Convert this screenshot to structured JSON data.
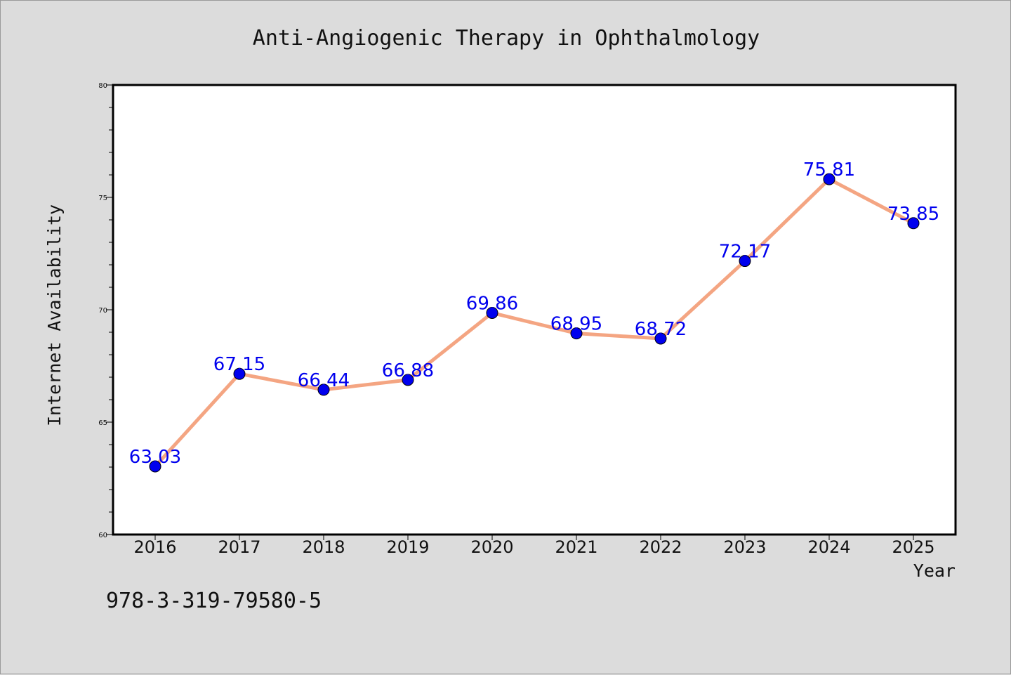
{
  "chart_data": {
    "type": "line",
    "title": "Anti-Angiogenic Therapy in Ophthalmology",
    "xlabel": "Year",
    "ylabel": "Internet Availability",
    "categories": [
      "2016",
      "2017",
      "2018",
      "2019",
      "2020",
      "2021",
      "2022",
      "2023",
      "2024",
      "2025"
    ],
    "series": [
      {
        "values": [
          63.03,
          67.15,
          66.44,
          66.88,
          69.86,
          68.95,
          68.72,
          72.17,
          75.81,
          73.85
        ],
        "labels": [
          "63.03",
          "67.15",
          "66.44",
          "66.88",
          "69.86",
          "68.95",
          "68.72",
          "72.17",
          "75.81",
          "73.85"
        ],
        "line_color": "#f4a582",
        "marker_color": "#0000ee"
      }
    ],
    "ylim": [
      60,
      80
    ],
    "yticks": [
      "60",
      "65",
      "70",
      "75",
      "80"
    ],
    "grid": false,
    "label_color": "#0000ee",
    "plot_background": "#ffffff",
    "page_background": "#dcdcdc"
  },
  "footer": {
    "text": "978-3-319-79580-5"
  }
}
